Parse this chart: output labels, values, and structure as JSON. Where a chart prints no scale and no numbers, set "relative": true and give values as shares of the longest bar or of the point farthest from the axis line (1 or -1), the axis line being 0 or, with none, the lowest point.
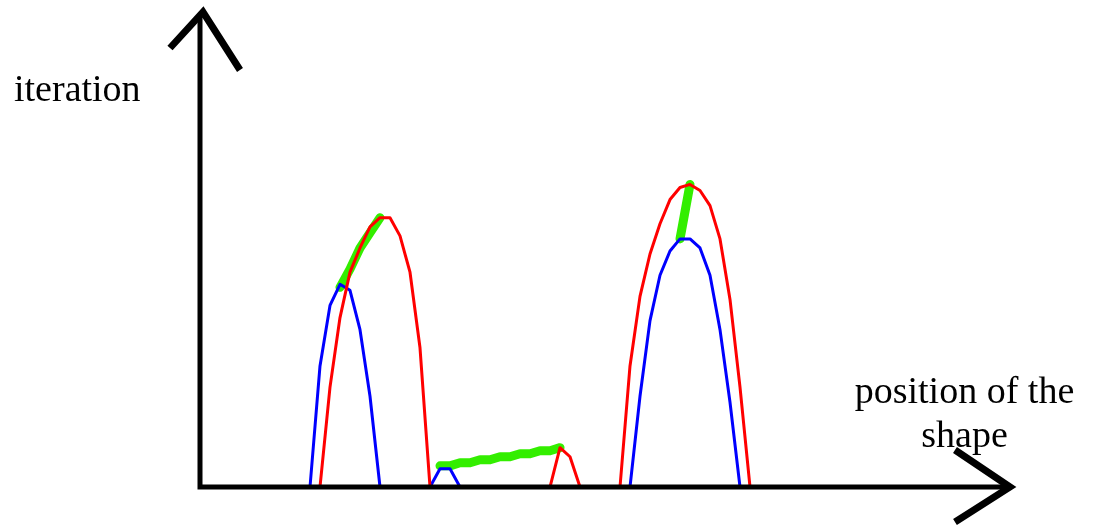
{
  "chart_data": {
    "type": "line",
    "relative": true,
    "xlabel": "position of the shape",
    "ylabel": "iteration",
    "categories": [
      null,
      null,
      null,
      null,
      null,
      null,
      null,
      null,
      null,
      null,
      null,
      null,
      null,
      null,
      null,
      null,
      null,
      null,
      null,
      null,
      null,
      null,
      null,
      null,
      null,
      null,
      null,
      null,
      null,
      null,
      null,
      null,
      null,
      null,
      null,
      null,
      null,
      null,
      null,
      null,
      null,
      null,
      null,
      null,
      null,
      null,
      null,
      null,
      null,
      null,
      null,
      null,
      null,
      null,
      null,
      null,
      null,
      null,
      null,
      null,
      null,
      null,
      null,
      null,
      null,
      null,
      null,
      null,
      null,
      null,
      null,
      null,
      null,
      null,
      null,
      null,
      null,
      null,
      null,
      null,
      null
    ],
    "series": [
      {
        "color": "#ff0000",
        "values": [
          null,
          null,
          null,
          null,
          null,
          null,
          null,
          null,
          null,
          null,
          null,
          null,
          0,
          0.33,
          0.56,
          0.71,
          0.79,
          0.86,
          0.89,
          0.89,
          0.83,
          0.71,
          0.46,
          0,
          null,
          null,
          null,
          null,
          null,
          null,
          null,
          null,
          null,
          null,
          null,
          null,
          null,
          null,
          null,
          null,
          null,
          null,
          null,
          null,
          null,
          null,
          null,
          null,
          null,
          null,
          null,
          null,
          null,
          null,
          null,
          null,
          null,
          null,
          null,
          null,
          null,
          null,
          null,
          null,
          null,
          null,
          null,
          null,
          null,
          null,
          null,
          null,
          null,
          null,
          null,
          null,
          null,
          null,
          null,
          null,
          null
        ]
      },
      {
        "color": "#ff0000",
        "values": [
          null,
          null,
          null,
          null,
          null,
          null,
          null,
          null,
          null,
          null,
          null,
          null,
          null,
          null,
          null,
          null,
          null,
          null,
          null,
          null,
          null,
          null,
          null,
          null,
          null,
          null,
          null,
          null,
          null,
          null,
          null,
          null,
          null,
          null,
          null,
          0,
          0.13,
          0.1,
          0,
          null,
          null,
          null,
          null,
          null,
          null,
          null,
          null,
          null,
          null,
          null,
          null,
          null,
          null,
          null,
          null,
          null,
          null,
          null,
          null,
          null,
          null,
          null,
          null,
          null,
          null,
          null,
          null,
          null,
          null,
          null,
          null,
          null,
          null,
          null,
          null,
          null,
          null,
          null,
          null,
          null,
          null
        ]
      },
      {
        "color": "#ff0000",
        "values": [
          null,
          null,
          null,
          null,
          null,
          null,
          null,
          null,
          null,
          null,
          null,
          null,
          null,
          null,
          null,
          null,
          null,
          null,
          null,
          null,
          null,
          null,
          null,
          null,
          null,
          null,
          null,
          null,
          null,
          null,
          null,
          null,
          null,
          null,
          null,
          null,
          null,
          null,
          null,
          null,
          null,
          null,
          0,
          0.4,
          0.63,
          0.77,
          0.87,
          0.95,
          0.99,
          1,
          0.98,
          0.93,
          0.82,
          0.62,
          0.33,
          0,
          null,
          null,
          null,
          null,
          null,
          null,
          null,
          null,
          null,
          null,
          null,
          null,
          null,
          null,
          null,
          null,
          null,
          null,
          null,
          null,
          null,
          null,
          null,
          null,
          null
        ]
      },
      {
        "color": "#0000ff",
        "values": [
          null,
          null,
          null,
          null,
          null,
          null,
          null,
          null,
          null,
          null,
          null,
          0,
          0.4,
          0.6,
          0.67,
          0.65,
          0.52,
          0.3,
          0,
          null,
          null,
          null,
          null,
          null,
          null,
          null,
          null,
          null,
          null,
          null,
          null,
          null,
          null,
          null,
          null,
          null,
          null,
          null,
          null,
          null,
          null,
          null,
          null,
          null,
          null,
          null,
          null,
          null,
          null,
          null,
          null,
          null,
          null,
          null,
          null,
          null,
          null,
          null,
          null,
          null,
          null,
          null,
          null,
          null,
          null,
          null,
          null,
          null,
          null,
          null,
          null,
          null,
          null,
          null,
          null,
          null,
          null,
          null,
          null,
          null,
          null
        ]
      },
      {
        "color": "#0000ff",
        "values": [
          null,
          null,
          null,
          null,
          null,
          null,
          null,
          null,
          null,
          null,
          null,
          null,
          null,
          null,
          null,
          null,
          null,
          null,
          null,
          null,
          null,
          null,
          null,
          0,
          0.06,
          0.06,
          0,
          null,
          null,
          null,
          null,
          null,
          null,
          null,
          null,
          null,
          null,
          null,
          null,
          null,
          null,
          null,
          null,
          null,
          null,
          null,
          null,
          null,
          null,
          null,
          null,
          null,
          null,
          null,
          null,
          null,
          null,
          null,
          null,
          null,
          null,
          null,
          null,
          null,
          null,
          null,
          null,
          null,
          null,
          null,
          null,
          null,
          null,
          null,
          null,
          null,
          null,
          null,
          null,
          null,
          null
        ]
      },
      {
        "color": "#0000ff",
        "values": [
          null,
          null,
          null,
          null,
          null,
          null,
          null,
          null,
          null,
          null,
          null,
          null,
          null,
          null,
          null,
          null,
          null,
          null,
          null,
          null,
          null,
          null,
          null,
          null,
          null,
          null,
          null,
          null,
          null,
          null,
          null,
          null,
          null,
          null,
          null,
          null,
          null,
          null,
          null,
          null,
          null,
          null,
          null,
          0,
          0.3,
          0.55,
          0.7,
          0.78,
          0.82,
          0.82,
          0.79,
          0.7,
          0.52,
          0.28,
          0,
          null,
          null,
          null,
          null,
          null,
          null,
          null,
          null,
          null,
          null,
          null,
          null,
          null,
          null,
          null,
          null,
          null,
          null,
          null,
          null,
          null,
          null,
          null,
          null,
          null,
          null
        ]
      },
      {
        "color": "#33ee00",
        "values": [
          null,
          null,
          null,
          null,
          null,
          null,
          null,
          null,
          null,
          null,
          null,
          null,
          null,
          null,
          0.66,
          0.72,
          0.79,
          0.84,
          0.89,
          null,
          null,
          null,
          null,
          null,
          null,
          null,
          null,
          null,
          null,
          null,
          null,
          null,
          null,
          null,
          null,
          null,
          null,
          null,
          null,
          null,
          null,
          null,
          null,
          null,
          null,
          null,
          null,
          null,
          null,
          null,
          null,
          null,
          null,
          null,
          null,
          null,
          null,
          null,
          null,
          null,
          null,
          null,
          null,
          null,
          null,
          null,
          null,
          null,
          null,
          null,
          null,
          null,
          null,
          null,
          null,
          null,
          null,
          null,
          null,
          null,
          null
        ]
      },
      {
        "color": "#33ee00",
        "values": [
          null,
          null,
          null,
          null,
          null,
          null,
          null,
          null,
          null,
          null,
          null,
          null,
          null,
          null,
          null,
          null,
          null,
          null,
          null,
          null,
          null,
          null,
          null,
          null,
          0.07,
          0.07,
          0.08,
          0.08,
          0.09,
          0.09,
          0.1,
          0.1,
          0.11,
          0.11,
          0.12,
          0.12,
          0.13,
          null,
          null,
          null,
          null,
          null,
          null,
          null,
          null,
          null,
          null,
          null,
          null,
          null,
          null,
          null,
          null,
          null,
          null,
          null,
          null,
          null,
          null,
          null,
          null,
          null,
          null,
          null,
          null,
          null,
          null,
          null,
          null,
          null,
          null,
          null,
          null,
          null,
          null,
          null,
          null,
          null,
          null,
          null,
          null
        ]
      },
      {
        "color": "#33ee00",
        "values": [
          null,
          null,
          null,
          null,
          null,
          null,
          null,
          null,
          null,
          null,
          null,
          null,
          null,
          null,
          null,
          null,
          null,
          null,
          null,
          null,
          null,
          null,
          null,
          null,
          null,
          null,
          null,
          null,
          null,
          null,
          null,
          null,
          null,
          null,
          null,
          null,
          null,
          null,
          null,
          null,
          null,
          null,
          null,
          null,
          null,
          null,
          null,
          null,
          0.82,
          1,
          null,
          null,
          null,
          null,
          null,
          null,
          null,
          null,
          null,
          null,
          null,
          null,
          null,
          null,
          null,
          null,
          null,
          null,
          null,
          null,
          null,
          null,
          null,
          null,
          null,
          null,
          null,
          null,
          null,
          null,
          null
        ]
      }
    ]
  }
}
